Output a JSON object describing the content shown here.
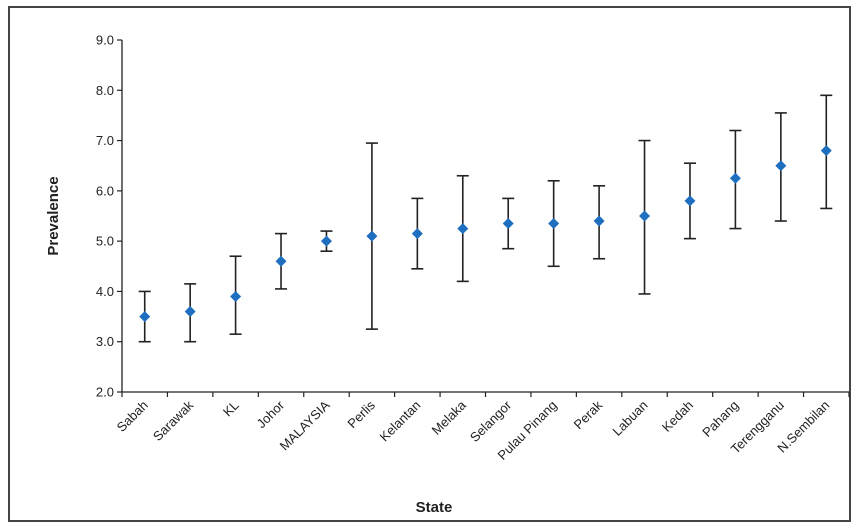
{
  "chart_data": {
    "type": "scatter",
    "title": "",
    "xlabel": "State",
    "ylabel": "Prevalence",
    "ylim": [
      2.0,
      9.0
    ],
    "yticks": [
      "2.0",
      "3.0",
      "4.0",
      "5.0",
      "6.0",
      "7.0",
      "8.0",
      "9.0"
    ],
    "grid": false,
    "legend": "none",
    "marker_color": "#1f6fc0",
    "errorbar_color": "#222222",
    "categories": [
      "Sabah",
      "Sarawak",
      "KL",
      "Johor",
      "MALAYSIA",
      "Perlis",
      "Kelantan",
      "Melaka",
      "Selangor",
      "Pulau Pinang",
      "Perak",
      "Labuan",
      "Kedah",
      "Pahang",
      "Terengganu",
      "N.Sembilan"
    ],
    "values": [
      3.5,
      3.6,
      3.9,
      4.6,
      5.0,
      5.1,
      5.15,
      5.25,
      5.35,
      5.35,
      5.4,
      5.5,
      5.8,
      6.25,
      6.5,
      6.8
    ],
    "lower": [
      3.0,
      3.0,
      3.15,
      4.05,
      4.8,
      3.25,
      4.45,
      4.2,
      4.85,
      4.5,
      4.65,
      3.95,
      5.05,
      5.25,
      5.4,
      5.65
    ],
    "upper": [
      4.0,
      4.15,
      4.7,
      5.15,
      5.2,
      6.95,
      5.85,
      6.3,
      5.85,
      6.2,
      6.1,
      7.0,
      6.55,
      7.2,
      7.55,
      7.9
    ]
  }
}
